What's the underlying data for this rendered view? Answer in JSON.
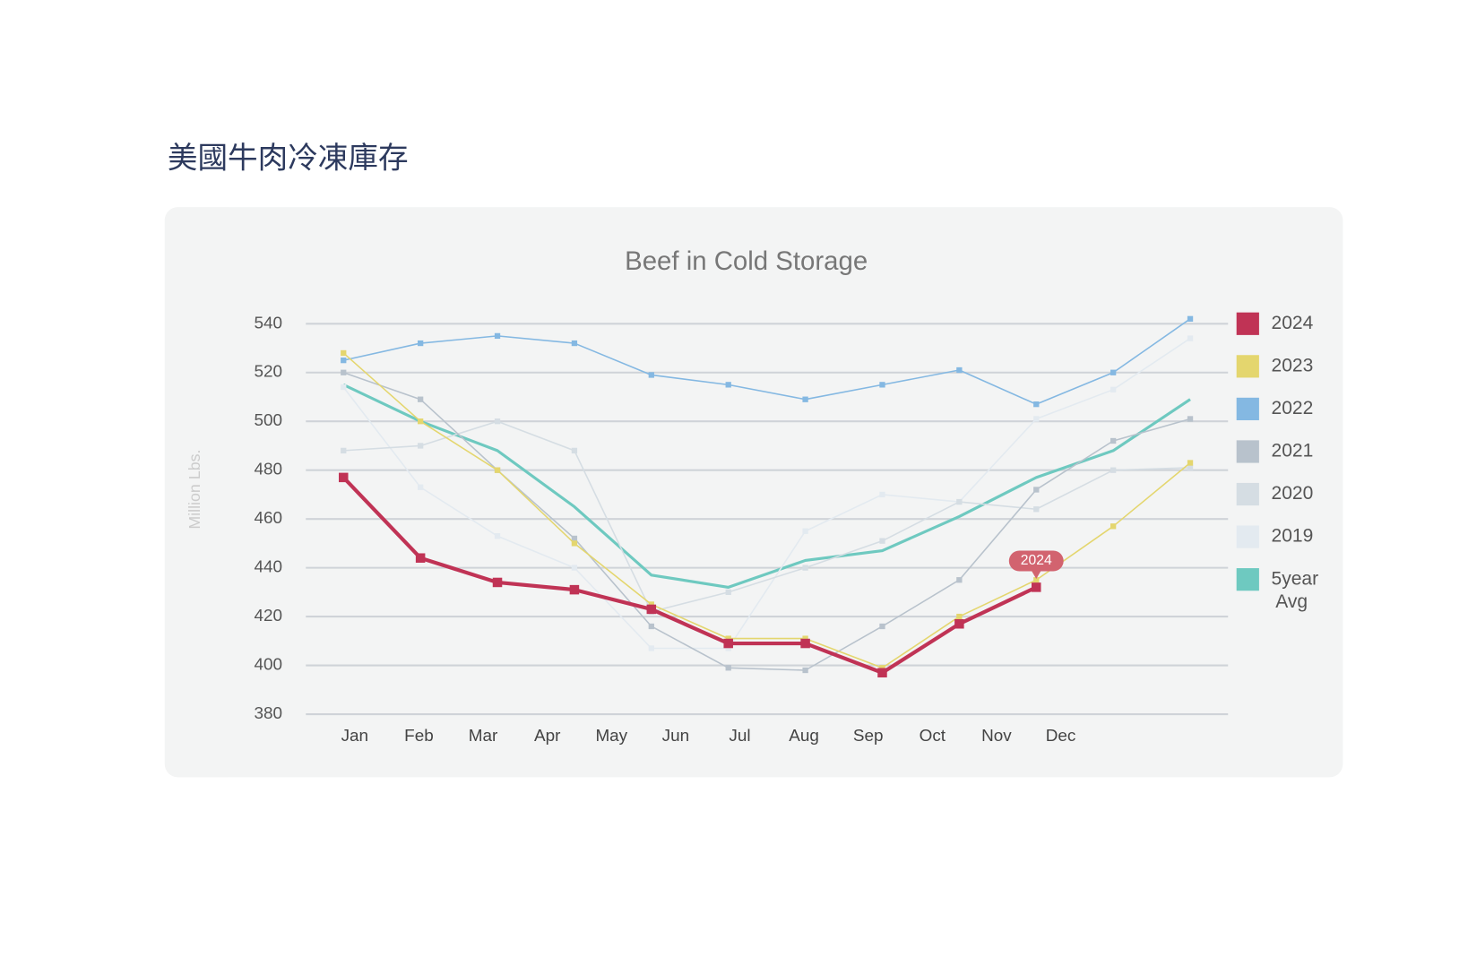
{
  "page_title": "美國牛肉冷凍庫存",
  "chart_data": {
    "type": "line",
    "title": "Beef in Cold Storage",
    "y_label": "Million Lbs.",
    "categories": [
      "Jan",
      "Feb",
      "Mar",
      "Apr",
      "May",
      "Jun",
      "Jul",
      "Aug",
      "Sep",
      "Oct",
      "Nov",
      "Dec"
    ],
    "ylim": [
      380,
      540
    ],
    "yticks": [
      380,
      400,
      420,
      440,
      460,
      480,
      500,
      520,
      540
    ],
    "grid": true,
    "legend": "right",
    "series": [
      {
        "name": "2024",
        "color": "#c03355",
        "values": [
          477,
          444,
          434,
          431,
          423,
          409,
          409,
          397,
          417,
          432,
          null,
          null
        ]
      },
      {
        "name": "2023",
        "color": "#e4d66e",
        "values": [
          528,
          500,
          480,
          450,
          425,
          411,
          411,
          399,
          420,
          435,
          457,
          483
        ]
      },
      {
        "name": "2022",
        "color": "#84b8e2",
        "values": [
          525,
          532,
          535,
          532,
          519,
          515,
          509,
          515,
          521,
          507,
          520,
          542
        ]
      },
      {
        "name": "2021",
        "color": "#b8c2cc",
        "values": [
          520,
          509,
          480,
          452,
          416,
          399,
          398,
          416,
          435,
          472,
          492,
          501
        ]
      },
      {
        "name": "2020",
        "color": "#d5dde3",
        "values": [
          488,
          490,
          500,
          488,
          422,
          430,
          440,
          451,
          467,
          464,
          480,
          481
        ]
      },
      {
        "name": "2019",
        "color": "#e3eaf0",
        "values": [
          514,
          473,
          453,
          440,
          407,
          407,
          455,
          470,
          467,
          501,
          513,
          534
        ]
      },
      {
        "name": "5year Avg",
        "color": "#6ec9c0",
        "values": [
          515,
          500,
          488,
          465,
          437,
          432,
          443,
          447,
          461,
          477,
          488,
          509
        ]
      }
    ]
  }
}
